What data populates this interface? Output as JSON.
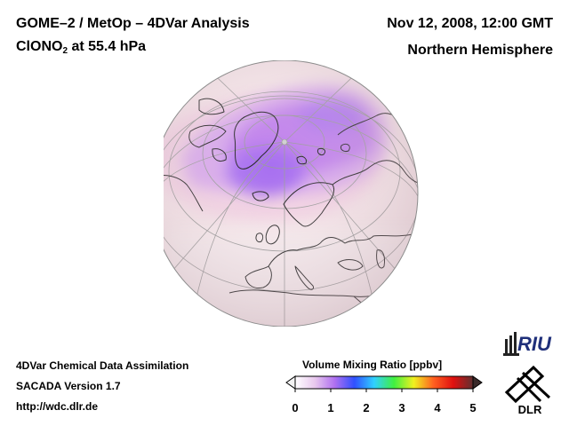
{
  "header": {
    "title_line1": "GOME–2 / MetOp – 4DVar Analysis",
    "species_prefix": "ClONO",
    "species_subscript": "2",
    "species_suffix": " at 55.4 hPa",
    "datetime": "Nov 12, 2008, 12:00 GMT",
    "region": "Northern Hemisphere"
  },
  "footer": {
    "line1": "4DVar Chemical Data Assimilation",
    "line2": "SACADA Version 1.7",
    "url": "http://wdc.dlr.de"
  },
  "colorbar": {
    "title": "Volume Mixing Ratio [ppbv]",
    "ticks": [
      "0",
      "1",
      "2",
      "3",
      "4",
      "5"
    ],
    "min": 0,
    "max": 5,
    "colors": [
      "#ffffff",
      "#e8c8ee",
      "#b070f0",
      "#3050ff",
      "#30d0ff",
      "#40f040",
      "#f0f020",
      "#ff6020",
      "#e01010",
      "#603030"
    ]
  },
  "logos": {
    "riu_text": "RIU",
    "dlr_text": "DLR"
  },
  "map": {
    "projection": "orthographic",
    "hemisphere": "Northern Hemisphere",
    "background_color": "#f6e6ea",
    "high_color": "#b070e8",
    "pole_marker_color": "#cfcfcf"
  }
}
